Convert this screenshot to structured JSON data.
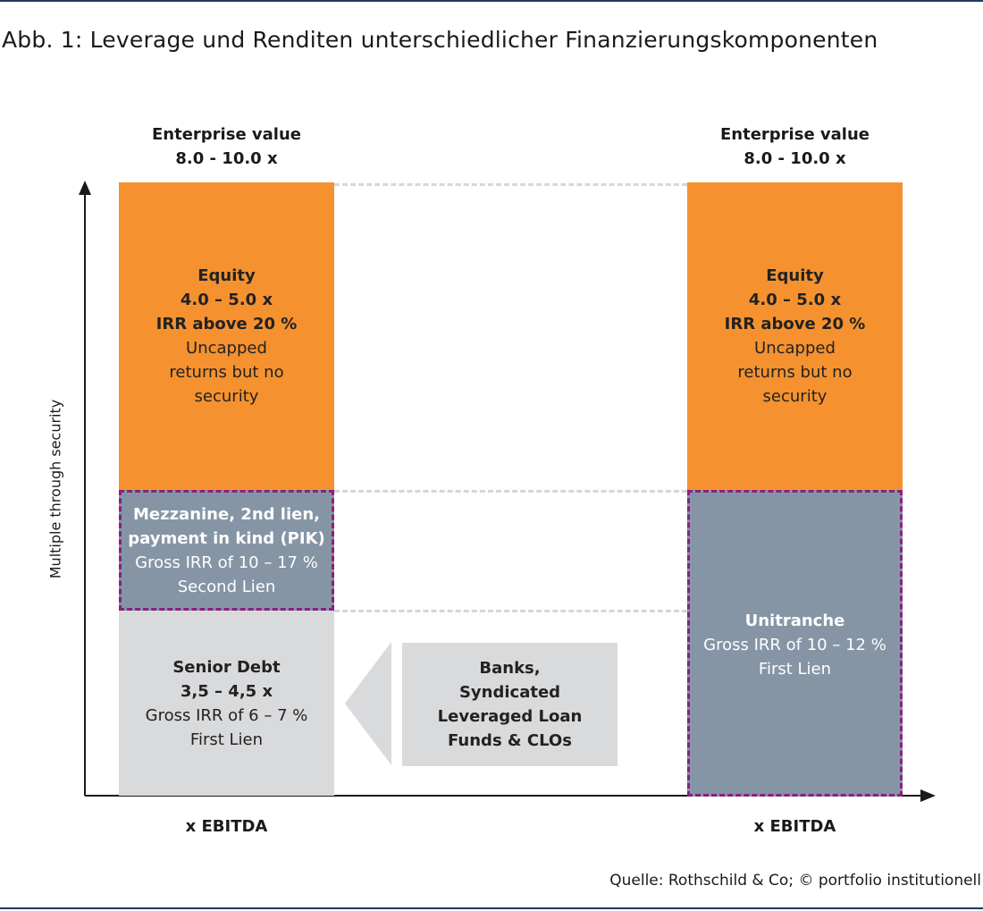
{
  "title": "Abb. 1: Leverage und Renditen unterschiedlicher Finanzierungskomponenten",
  "axis": {
    "y_label": "Multiple through security",
    "x_label_left": "x EBITDA",
    "x_label_right": "x EBITDA"
  },
  "left": {
    "header": [
      "Enterprise value",
      "8.0 - 10.0 x"
    ],
    "equity": {
      "bold": [
        "Equity",
        "4.0 – 5.0 x",
        "IRR above 20 %"
      ],
      "normal": [
        "Uncapped",
        "returns but no",
        "security"
      ]
    },
    "mezzanine": {
      "bold": [
        "Mezzanine, 2nd lien,",
        "payment in kind (PIK)"
      ],
      "normal": [
        "Gross IRR of 10 – 17 %",
        "Second Lien"
      ]
    },
    "senior": {
      "bold": [
        "Senior Debt",
        "3,5 – 4,5 x"
      ],
      "normal": [
        "Gross IRR of 6 – 7 %",
        "First Lien"
      ]
    }
  },
  "banks": {
    "bold": [
      "Banks,",
      "Syndicated",
      "Leveraged Loan",
      "Funds & CLOs"
    ]
  },
  "right": {
    "header": [
      "Enterprise value",
      "8.0 - 10.0 x"
    ],
    "equity": {
      "bold": [
        "Equity",
        "4.0 – 5.0 x",
        "IRR above 20 %"
      ],
      "normal": [
        "Uncapped",
        "returns but no",
        "security"
      ]
    },
    "unitranche": {
      "bold": [
        "Unitranche"
      ],
      "normal": [
        "Gross IRR of 10 – 12 %",
        "First Lien"
      ]
    }
  },
  "source": "Quelle: Rothschild & Co; © portfolio institutionell",
  "colors": {
    "equity": "#f5922f",
    "mezzanine": "#8595a5",
    "senior": "#d9dadc",
    "banks": "#d9dadc",
    "border_dash": "#8c1f7f",
    "rule": "#1f3c5c"
  }
}
